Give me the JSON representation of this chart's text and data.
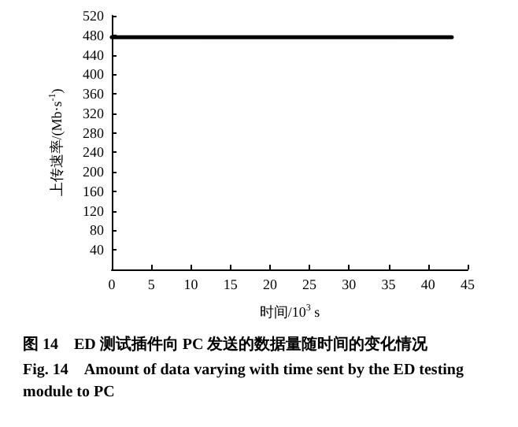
{
  "chart_data": {
    "type": "line",
    "xlabel": "时间/10$^{3}$ s",
    "ylabel": "上传速率/(Mb·s$^{-1}$)",
    "annotations": [
      "图 14　ED 测试插件向 PC 发送的数据量随时间的变化情况",
      "Fig. 14　Amount of data varying with time sent by the ED testing module to PC"
    ],
    "x": [
      0,
      43
    ],
    "series": [
      {
        "color": "#000000",
        "values": [
          476,
          476
        ]
      }
    ],
    "xlim": [
      0,
      45
    ],
    "xticks": [
      0,
      5,
      10,
      15,
      20,
      25,
      30,
      35,
      40,
      45
    ],
    "ylim": [
      0,
      520
    ],
    "yticks": [
      40,
      80,
      120,
      160,
      200,
      240,
      280,
      320,
      360,
      400,
      440,
      480,
      520
    ],
    "grid": false,
    "marker": "none",
    "line_style": "solid"
  }
}
